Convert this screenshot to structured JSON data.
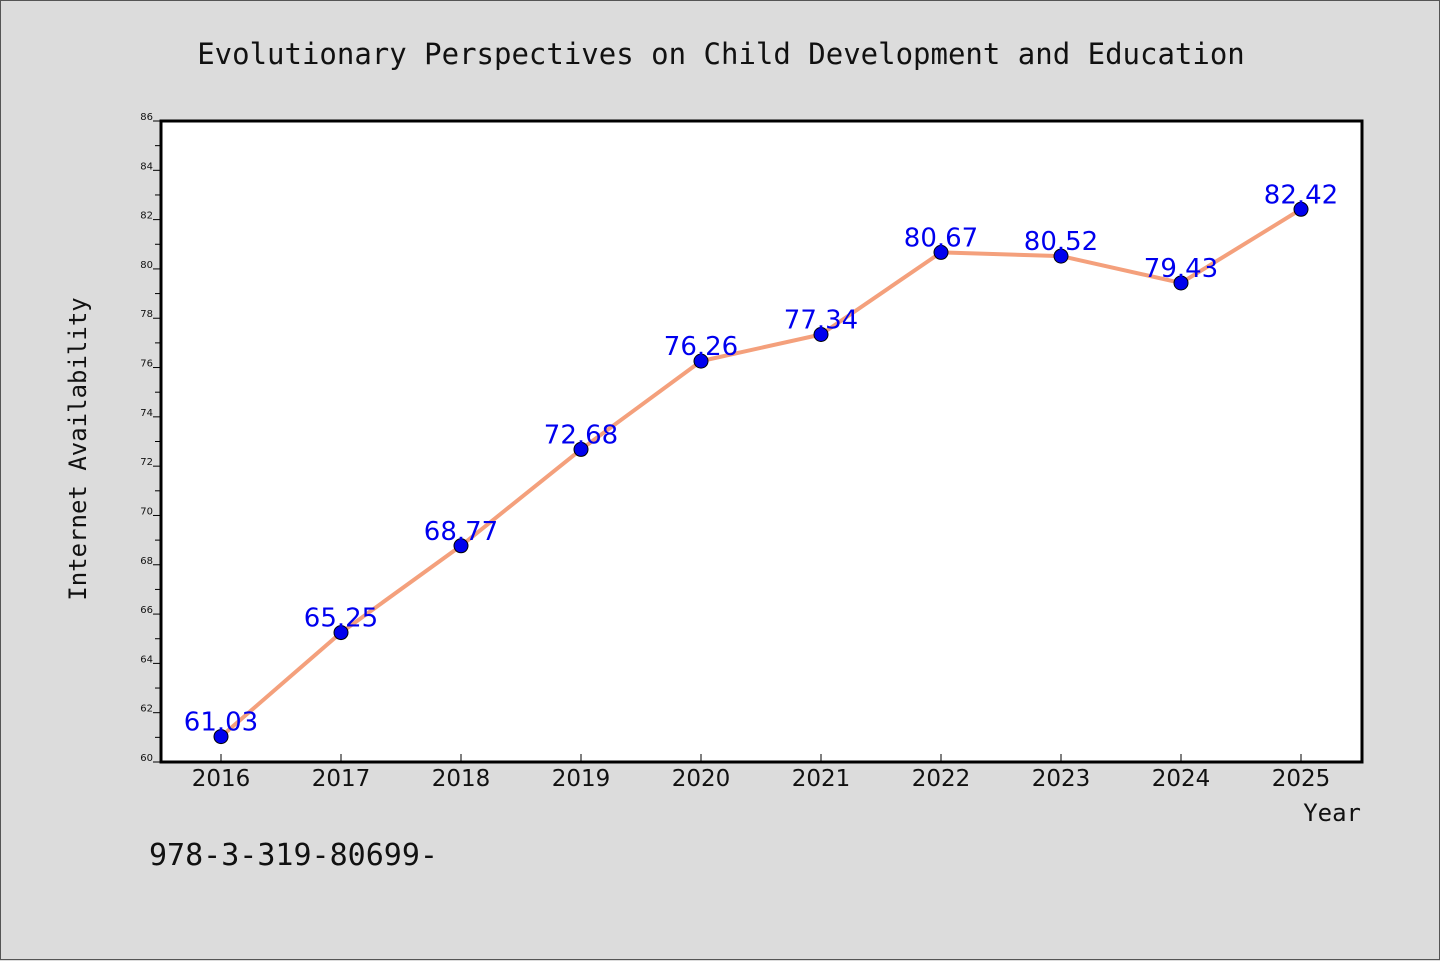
{
  "chart_data": {
    "type": "line",
    "title": "Evolutionary Perspectives on Child Development and Education",
    "xlabel": "Year",
    "ylabel": "Internet Availability",
    "x": [
      "2016",
      "2017",
      "2018",
      "2019",
      "2020",
      "2021",
      "2022",
      "2023",
      "2024",
      "2025"
    ],
    "series": [
      {
        "values": [
          61.03,
          65.25,
          68.77,
          72.68,
          76.26,
          77.34,
          80.67,
          80.52,
          79.43,
          82.42
        ]
      }
    ],
    "data_labels": [
      "61.03",
      "65.25",
      "68.77",
      "72.68",
      "76.26",
      "77.34",
      "80.67",
      "80.52",
      "79.43",
      "82.42"
    ],
    "ylim": [
      60,
      86
    ],
    "yticks": [
      60,
      62,
      64,
      66,
      68,
      70,
      72,
      74,
      76,
      78,
      80,
      82,
      84,
      86
    ],
    "grid": false,
    "legend": "none",
    "colors": {
      "line": "#f4a07c",
      "marker": "#0000ee",
      "data_label": "#0000ee",
      "plot_background": "#ffffff",
      "page_background": "#dcdcdc"
    }
  },
  "footer_text": "978-3-319-80699-"
}
